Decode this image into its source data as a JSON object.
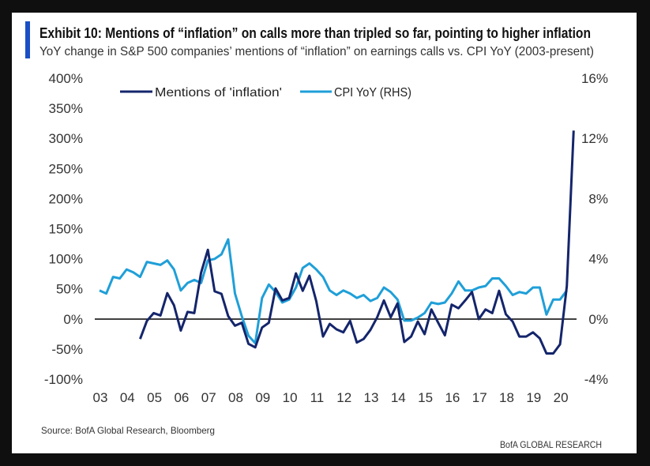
{
  "title": "Exhibit 10: Mentions of “inflation” on calls more than tripled so far, pointing to higher inflation",
  "subtitle": "YoY change in S&P 500 companies’ mentions of “inflation” on earnings calls vs. CPI YoY (2003-present)",
  "source": "Source:  BofA Global Research, Bloomberg",
  "brand": "BofA GLOBAL RESEARCH",
  "colors": {
    "mentions": "#14256b",
    "cpi": "#1f9fd8",
    "accent_bar": "#1a4fc4"
  },
  "chart_data": {
    "type": "line",
    "title": "Exhibit 10: Mentions of “inflation” on calls more than tripled so far, pointing to higher inflation",
    "legend_position": "top",
    "grid": false,
    "x_start": "2003Q1",
    "x_step": "quarter",
    "x_tick_labels": [
      "03",
      "04",
      "05",
      "06",
      "07",
      "08",
      "09",
      "10",
      "11",
      "12",
      "13",
      "14",
      "15",
      "16",
      "17",
      "18",
      "19",
      "20"
    ],
    "y_left": {
      "ticks": [
        "400%",
        "350%",
        "300%",
        "250%",
        "200%",
        "150%",
        "100%",
        "50%",
        "0%",
        "-50%",
        "-100%"
      ],
      "range": [
        -100,
        400
      ]
    },
    "y_right": {
      "ticks": [
        "16%",
        "12%",
        "8%",
        "4%",
        "0%",
        "-4%"
      ],
      "range": [
        -4,
        16
      ]
    },
    "series": [
      {
        "name": "Mentions of 'inflation'",
        "axis": "left",
        "values": [
          null,
          null,
          null,
          null,
          null,
          null,
          -33,
          -3,
          10,
          6,
          43,
          23,
          -19,
          12,
          10,
          77,
          115,
          46,
          42,
          5,
          -11,
          -6,
          -41,
          -47,
          -14,
          -6,
          51,
          31,
          35,
          76,
          47,
          72,
          30,
          -29,
          -8,
          -17,
          -22,
          -3,
          -39,
          -33,
          -18,
          3,
          31,
          3,
          26,
          -38,
          -29,
          -4,
          -25,
          16,
          -6,
          -27,
          24,
          18,
          31,
          45,
          0,
          16,
          10,
          47,
          8,
          -4,
          -29,
          -29,
          -22,
          -32,
          -57,
          -57,
          -42,
          55,
          313
        ]
      },
      {
        "name": "CPI YoY (RHS)",
        "axis": "right",
        "values": [
          1.9,
          1.7,
          2.8,
          2.7,
          3.3,
          3.1,
          2.8,
          3.8,
          3.7,
          3.6,
          3.9,
          3.3,
          1.9,
          2.4,
          2.6,
          2.4,
          3.9,
          4.0,
          4.3,
          5.3,
          1.7,
          0.2,
          -1.1,
          -1.6,
          1.4,
          2.3,
          1.8,
          1.1,
          1.3,
          2.1,
          3.4,
          3.7,
          3.3,
          2.8,
          1.9,
          1.6,
          1.9,
          1.7,
          1.4,
          1.6,
          1.2,
          1.4,
          2.1,
          1.8,
          1.3,
          -0.1,
          -0.1,
          0.1,
          0.4,
          1.1,
          1.0,
          1.1,
          1.7,
          2.5,
          1.9,
          1.9,
          2.1,
          2.2,
          2.7,
          2.7,
          2.2,
          1.6,
          1.8,
          1.7,
          2.1,
          2.1,
          0.3,
          1.3,
          1.3,
          1.9,
          null
        ]
      }
    ]
  }
}
